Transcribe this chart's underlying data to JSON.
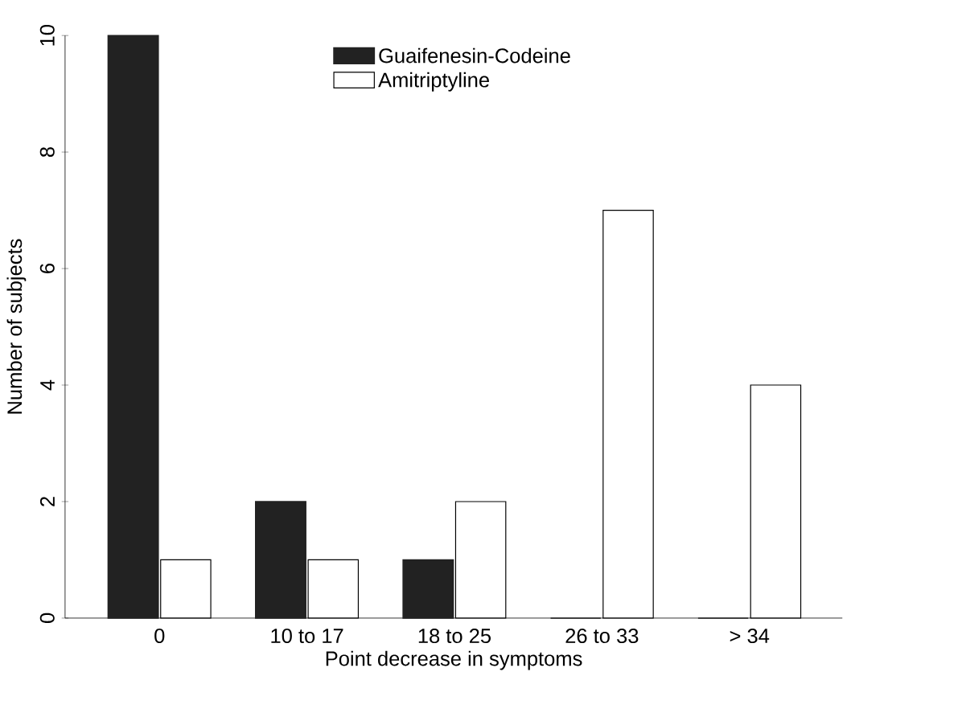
{
  "chart_data": {
    "type": "bar",
    "xlabel": "Point decrease in symptoms",
    "ylabel": "Number of subjects",
    "categories": [
      "0",
      "10 to 17",
      "18 to 25",
      "26 to 33",
      ">  34"
    ],
    "series": [
      {
        "name": "Guaifenesin-Codeine",
        "color": "#222222",
        "values": [
          10,
          2,
          1,
          0,
          0
        ]
      },
      {
        "name": "Amitriptyline",
        "color": "#ffffff",
        "values": [
          1,
          1,
          2,
          7,
          4
        ]
      }
    ],
    "ylim": [
      0,
      10
    ],
    "yticks": [
      0,
      2,
      4,
      6,
      8,
      10
    ],
    "legend": "top",
    "grid": false
  }
}
